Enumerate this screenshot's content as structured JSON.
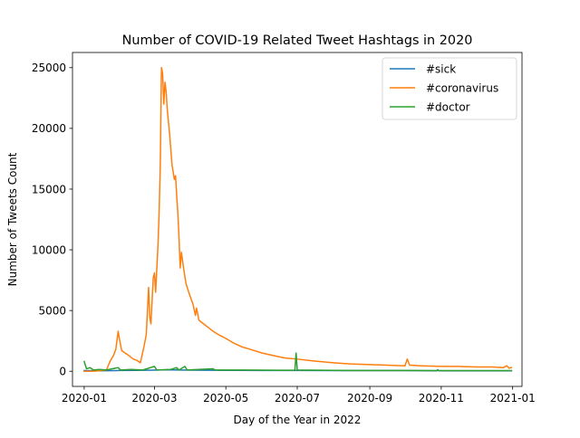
{
  "chart_data": {
    "type": "line",
    "title": "Number of COVID-19 Related Tweet Hashtags in 2020",
    "xlabel": "Day of the Year in 2022",
    "ylabel": "Number of Tweets Count",
    "x_scale": "date",
    "xlim": [
      "2019-12-22",
      "2021-01-09"
    ],
    "ylim": [
      -1250,
      26250
    ],
    "x_ticks": [
      "2020-01-01",
      "2020-03-01",
      "2020-05-01",
      "2020-07-01",
      "2020-09-01",
      "2020-11-01",
      "2021-01-01"
    ],
    "x_tick_labels": [
      "2020-01",
      "2020-03",
      "2020-05",
      "2020-07",
      "2020-09",
      "2020-11",
      "2021-01"
    ],
    "y_ticks": [
      0,
      5000,
      10000,
      15000,
      20000,
      25000
    ],
    "y_tick_labels": [
      "0",
      "5000",
      "10000",
      "15000",
      "20000",
      "25000"
    ],
    "grid": false,
    "legend": {
      "placement": "top-right"
    },
    "series": [
      {
        "name": "#sick",
        "color": "#1f77b4",
        "points": [
          [
            "2020-01-01",
            50
          ],
          [
            "2020-01-15",
            40
          ],
          [
            "2020-02-01",
            60
          ],
          [
            "2020-02-15",
            70
          ],
          [
            "2020-03-01",
            90
          ],
          [
            "2020-03-08",
            110
          ],
          [
            "2020-03-15",
            120
          ],
          [
            "2020-03-22",
            100
          ],
          [
            "2020-04-01",
            90
          ],
          [
            "2020-04-15",
            80
          ],
          [
            "2020-05-01",
            70
          ],
          [
            "2020-06-01",
            60
          ],
          [
            "2020-07-01",
            60
          ],
          [
            "2020-08-01",
            50
          ],
          [
            "2020-09-01",
            50
          ],
          [
            "2020-10-01",
            50
          ],
          [
            "2020-10-28",
            40
          ],
          [
            "2020-10-29",
            120
          ],
          [
            "2020-10-30",
            40
          ],
          [
            "2020-11-01",
            40
          ],
          [
            "2020-12-01",
            40
          ],
          [
            "2020-12-31",
            40
          ]
        ]
      },
      {
        "name": "#coronavirus",
        "color": "#ff7f0e",
        "points": [
          [
            "2020-01-01",
            0
          ],
          [
            "2020-01-10",
            10
          ],
          [
            "2020-01-20",
            100
          ],
          [
            "2020-01-23",
            800
          ],
          [
            "2020-01-26",
            1300
          ],
          [
            "2020-01-28",
            1800
          ],
          [
            "2020-01-30",
            3300
          ],
          [
            "2020-01-31",
            2700
          ],
          [
            "2020-02-02",
            1700
          ],
          [
            "2020-02-05",
            1500
          ],
          [
            "2020-02-08",
            1300
          ],
          [
            "2020-02-12",
            1000
          ],
          [
            "2020-02-15",
            900
          ],
          [
            "2020-02-18",
            700
          ],
          [
            "2020-02-21",
            2000
          ],
          [
            "2020-02-23",
            3000
          ],
          [
            "2020-02-25",
            6900
          ],
          [
            "2020-02-26",
            4500
          ],
          [
            "2020-02-27",
            3900
          ],
          [
            "2020-02-28",
            5800
          ],
          [
            "2020-02-29",
            7700
          ],
          [
            "2020-03-01",
            8100
          ],
          [
            "2020-03-02",
            6500
          ],
          [
            "2020-03-04",
            10300
          ],
          [
            "2020-03-05",
            13000
          ],
          [
            "2020-03-06",
            17000
          ],
          [
            "2020-03-07",
            25000
          ],
          [
            "2020-03-08",
            24500
          ],
          [
            "2020-03-09",
            22000
          ],
          [
            "2020-03-10",
            23800
          ],
          [
            "2020-03-11",
            23000
          ],
          [
            "2020-03-12",
            21500
          ],
          [
            "2020-03-14",
            19500
          ],
          [
            "2020-03-16",
            17000
          ],
          [
            "2020-03-18",
            15800
          ],
          [
            "2020-03-19",
            16100
          ],
          [
            "2020-03-20",
            14500
          ],
          [
            "2020-03-21",
            13000
          ],
          [
            "2020-03-22",
            11000
          ],
          [
            "2020-03-23",
            8500
          ],
          [
            "2020-03-24",
            9800
          ],
          [
            "2020-03-26",
            8400
          ],
          [
            "2020-03-28",
            7200
          ],
          [
            "2020-03-31",
            6300
          ],
          [
            "2020-04-03",
            5500
          ],
          [
            "2020-04-05",
            4600
          ],
          [
            "2020-04-06",
            5200
          ],
          [
            "2020-04-08",
            4200
          ],
          [
            "2020-04-12",
            3900
          ],
          [
            "2020-04-16",
            3600
          ],
          [
            "2020-04-20",
            3300
          ],
          [
            "2020-04-25",
            3000
          ],
          [
            "2020-05-01",
            2700
          ],
          [
            "2020-05-08",
            2300
          ],
          [
            "2020-05-15",
            2000
          ],
          [
            "2020-05-22",
            1800
          ],
          [
            "2020-06-01",
            1500
          ],
          [
            "2020-06-10",
            1300
          ],
          [
            "2020-06-20",
            1100
          ],
          [
            "2020-07-01",
            1000
          ],
          [
            "2020-07-15",
            850
          ],
          [
            "2020-08-01",
            700
          ],
          [
            "2020-08-15",
            600
          ],
          [
            "2020-09-01",
            550
          ],
          [
            "2020-09-15",
            500
          ],
          [
            "2020-10-01",
            450
          ],
          [
            "2020-10-03",
            1000
          ],
          [
            "2020-10-05",
            500
          ],
          [
            "2020-10-15",
            450
          ],
          [
            "2020-11-01",
            400
          ],
          [
            "2020-11-15",
            400
          ],
          [
            "2020-12-01",
            350
          ],
          [
            "2020-12-15",
            350
          ],
          [
            "2020-12-24",
            300
          ],
          [
            "2020-12-27",
            450
          ],
          [
            "2020-12-29",
            250
          ],
          [
            "2020-12-31",
            300
          ]
        ]
      },
      {
        "name": "#doctor",
        "color": "#2ca02c",
        "points": [
          [
            "2020-01-01",
            800
          ],
          [
            "2020-01-03",
            200
          ],
          [
            "2020-01-06",
            300
          ],
          [
            "2020-01-09",
            100
          ],
          [
            "2020-01-14",
            150
          ],
          [
            "2020-01-20",
            100
          ],
          [
            "2020-01-30",
            300
          ],
          [
            "2020-02-01",
            100
          ],
          [
            "2020-02-10",
            150
          ],
          [
            "2020-02-20",
            100
          ],
          [
            "2020-03-01",
            400
          ],
          [
            "2020-03-03",
            100
          ],
          [
            "2020-03-15",
            150
          ],
          [
            "2020-03-20",
            300
          ],
          [
            "2020-03-22",
            100
          ],
          [
            "2020-03-27",
            400
          ],
          [
            "2020-03-29",
            100
          ],
          [
            "2020-04-20",
            200
          ],
          [
            "2020-04-22",
            100
          ],
          [
            "2020-05-15",
            100
          ],
          [
            "2020-06-15",
            80
          ],
          [
            "2020-06-29",
            80
          ],
          [
            "2020-06-30",
            1500
          ],
          [
            "2020-07-01",
            100
          ],
          [
            "2020-08-01",
            70
          ],
          [
            "2020-09-01",
            60
          ],
          [
            "2020-10-01",
            60
          ],
          [
            "2020-11-01",
            50
          ],
          [
            "2020-12-01",
            50
          ],
          [
            "2020-12-31",
            50
          ]
        ]
      }
    ]
  }
}
